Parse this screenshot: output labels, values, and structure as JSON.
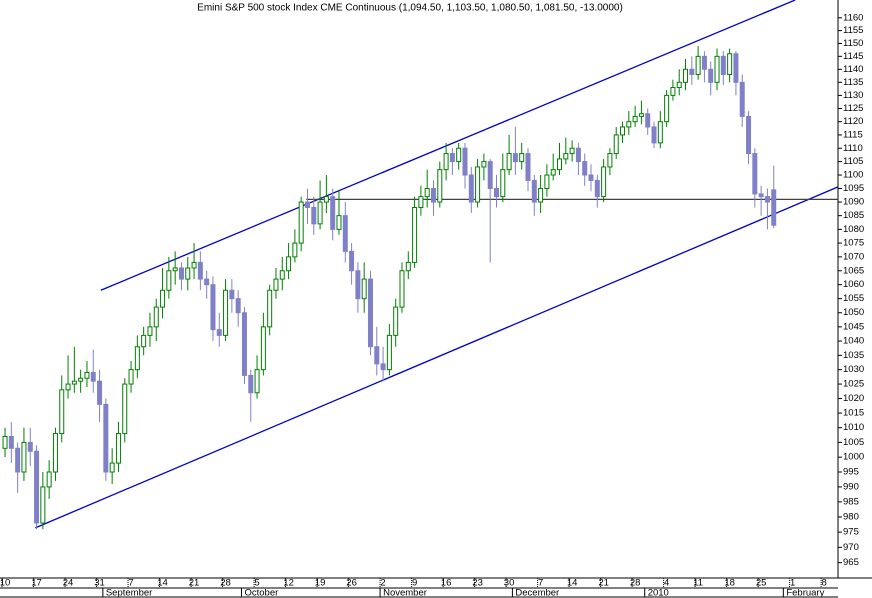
{
  "chart_data": {
    "type": "candlestick",
    "title": "Emini S&P 500 stock Index CME Continuous (1,094.50, 1,103.50, 1,080.50, 1,081.50, -13.0000)",
    "up_color": "#008000",
    "down_color": "#8080c8",
    "ylim": [
      960,
      1167
    ],
    "log_scale": true,
    "yticks": [
      965,
      970,
      975,
      980,
      985,
      990,
      995,
      1000,
      1005,
      1010,
      1015,
      1020,
      1025,
      1030,
      1035,
      1040,
      1045,
      1050,
      1055,
      1060,
      1065,
      1070,
      1075,
      1080,
      1085,
      1090,
      1095,
      1100,
      1105,
      1110,
      1115,
      1120,
      1125,
      1130,
      1135,
      1140,
      1145,
      1150,
      1155,
      1160
    ],
    "xlim": [
      -0.8,
      132.2
    ],
    "xticks": [
      {
        "value": 0,
        "label": "10"
      },
      {
        "value": 5,
        "label": "17"
      },
      {
        "value": 10,
        "label": "24"
      },
      {
        "value": 15,
        "label": "31"
      },
      {
        "value": 20,
        "label": "7"
      },
      {
        "value": 25,
        "label": "14"
      },
      {
        "value": 30,
        "label": "21"
      },
      {
        "value": 35,
        "label": "28"
      },
      {
        "value": 40,
        "label": "5"
      },
      {
        "value": 45,
        "label": "12"
      },
      {
        "value": 50,
        "label": "19"
      },
      {
        "value": 55,
        "label": "26"
      },
      {
        "value": 60,
        "label": "2"
      },
      {
        "value": 65,
        "label": "9"
      },
      {
        "value": 70,
        "label": "16"
      },
      {
        "value": 75,
        "label": "23"
      },
      {
        "value": 80,
        "label": "30"
      },
      {
        "value": 85,
        "label": "7"
      },
      {
        "value": 90,
        "label": "14"
      },
      {
        "value": 95,
        "label": "21"
      },
      {
        "value": 100,
        "label": "28"
      },
      {
        "value": 105,
        "label": "4"
      },
      {
        "value": 110,
        "label": "11"
      },
      {
        "value": 115,
        "label": "18"
      },
      {
        "value": 120,
        "label": "25"
      },
      {
        "value": 125,
        "label": "1"
      },
      {
        "value": 130,
        "label": "8"
      }
    ],
    "month_ticks": [
      {
        "value": 16,
        "label": "September"
      },
      {
        "value": 38,
        "label": "October"
      },
      {
        "value": 60,
        "label": "November"
      },
      {
        "value": 81,
        "label": "December"
      },
      {
        "value": 102,
        "label": "2010"
      },
      {
        "value": 124,
        "label": "February"
      }
    ],
    "lines": [
      {
        "x": [
          15.2,
          125.4
        ],
        "y": [
          1058,
          1167
        ],
        "color": "#0000cc"
      },
      {
        "x": [
          4.8,
          132.2
        ],
        "y": [
          976.4,
          1095.6
        ],
        "color": "#0000cc"
      },
      {
        "x": [
          47.8,
          132.2
        ],
        "y": [
          1091,
          1091
        ],
        "color": "#404040"
      }
    ],
    "candles": [
      [
        1003,
        1010,
        1000,
        1007
      ],
      [
        1007,
        1012,
        998,
        1003
      ],
      [
        1003,
        1005,
        988,
        995
      ],
      [
        995,
        1010,
        992,
        1005
      ],
      [
        1005,
        1010,
        997,
        1002
      ],
      [
        1002,
        1004,
        976,
        978
      ],
      [
        978,
        995,
        976,
        990
      ],
      [
        990,
        999,
        986,
        995
      ],
      [
        995,
        1010,
        992,
        1008
      ],
      [
        1008,
        1028,
        1005,
        1023
      ],
      [
        1023,
        1035,
        1020,
        1025
      ],
      [
        1025,
        1038,
        1022,
        1026
      ],
      [
        1026,
        1030,
        1022,
        1027
      ],
      [
        1027,
        1033,
        1024,
        1029
      ],
      [
        1029,
        1037,
        1022,
        1026
      ],
      [
        1026,
        1030,
        1012,
        1018
      ],
      [
        1018,
        1020,
        992,
        995
      ],
      [
        995,
        1003,
        991,
        998
      ],
      [
        998,
        1012,
        995,
        1008
      ],
      [
        1008,
        1027,
        1005,
        1025
      ],
      [
        1025,
        1033,
        1022,
        1030
      ],
      [
        1030,
        1042,
        1027,
        1038
      ],
      [
        1038,
        1045,
        1035,
        1042
      ],
      [
        1042,
        1050,
        1038,
        1045
      ],
      [
        1045,
        1055,
        1040,
        1052
      ],
      [
        1052,
        1066,
        1048,
        1058
      ],
      [
        1058,
        1070,
        1055,
        1065
      ],
      [
        1065,
        1072,
        1060,
        1066
      ],
      [
        1066,
        1068,
        1058,
        1062
      ],
      [
        1062,
        1070,
        1058,
        1066
      ],
      [
        1066,
        1075,
        1062,
        1068
      ],
      [
        1068,
        1072,
        1058,
        1062
      ],
      [
        1062,
        1065,
        1055,
        1060
      ],
      [
        1060,
        1063,
        1040,
        1044
      ],
      [
        1044,
        1050,
        1038,
        1042
      ],
      [
        1042,
        1062,
        1040,
        1058
      ],
      [
        1058,
        1062,
        1050,
        1055
      ],
      [
        1055,
        1058,
        1045,
        1050
      ],
      [
        1050,
        1052,
        1025,
        1028
      ],
      [
        1028,
        1030,
        1012,
        1022
      ],
      [
        1022,
        1035,
        1020,
        1030
      ],
      [
        1030,
        1050,
        1028,
        1045
      ],
      [
        1045,
        1060,
        1042,
        1058
      ],
      [
        1058,
        1066,
        1055,
        1062
      ],
      [
        1062,
        1070,
        1058,
        1065
      ],
      [
        1065,
        1075,
        1062,
        1070
      ],
      [
        1070,
        1080,
        1068,
        1075
      ],
      [
        1075,
        1092,
        1072,
        1090
      ],
      [
        1090,
        1095,
        1082,
        1088
      ],
      [
        1088,
        1092,
        1078,
        1082
      ],
      [
        1082,
        1098,
        1080,
        1090
      ],
      [
        1090,
        1100,
        1086,
        1092
      ],
      [
        1092,
        1095,
        1076,
        1080
      ],
      [
        1080,
        1094,
        1078,
        1085
      ],
      [
        1085,
        1090,
        1068,
        1072
      ],
      [
        1072,
        1075,
        1060,
        1065
      ],
      [
        1065,
        1068,
        1050,
        1055
      ],
      [
        1055,
        1068,
        1050,
        1062
      ],
      [
        1062,
        1065,
        1035,
        1038
      ],
      [
        1038,
        1045,
        1028,
        1032
      ],
      [
        1032,
        1038,
        1026,
        1030
      ],
      [
        1030,
        1046,
        1028,
        1042
      ],
      [
        1042,
        1055,
        1038,
        1052
      ],
      [
        1052,
        1068,
        1050,
        1065
      ],
      [
        1065,
        1072,
        1062,
        1068
      ],
      [
        1068,
        1092,
        1066,
        1088
      ],
      [
        1088,
        1096,
        1085,
        1092
      ],
      [
        1092,
        1102,
        1088,
        1095
      ],
      [
        1095,
        1098,
        1085,
        1090
      ],
      [
        1090,
        1105,
        1088,
        1102
      ],
      [
        1102,
        1112,
        1098,
        1108
      ],
      [
        1108,
        1110,
        1100,
        1105
      ],
      [
        1105,
        1112,
        1102,
        1110
      ],
      [
        1110,
        1112,
        1095,
        1100
      ],
      [
        1100,
        1103,
        1086,
        1090
      ],
      [
        1090,
        1106,
        1088,
        1103
      ],
      [
        1103,
        1108,
        1098,
        1105
      ],
      [
        1105,
        1106,
        1068,
        1095
      ],
      [
        1095,
        1100,
        1088,
        1092
      ],
      [
        1092,
        1108,
        1090,
        1102
      ],
      [
        1102,
        1115,
        1100,
        1108
      ],
      [
        1108,
        1118,
        1100,
        1105
      ],
      [
        1105,
        1112,
        1102,
        1108
      ],
      [
        1108,
        1110,
        1094,
        1098
      ],
      [
        1098,
        1100,
        1085,
        1090
      ],
      [
        1090,
        1100,
        1086,
        1095
      ],
      [
        1095,
        1104,
        1092,
        1100
      ],
      [
        1100,
        1108,
        1098,
        1102
      ],
      [
        1102,
        1112,
        1100,
        1106
      ],
      [
        1106,
        1114,
        1104,
        1108
      ],
      [
        1108,
        1113,
        1105,
        1110
      ],
      [
        1110,
        1112,
        1100,
        1105
      ],
      [
        1105,
        1108,
        1096,
        1100
      ],
      [
        1100,
        1104,
        1094,
        1098
      ],
      [
        1098,
        1100,
        1088,
        1092
      ],
      [
        1092,
        1106,
        1090,
        1103
      ],
      [
        1103,
        1110,
        1100,
        1108
      ],
      [
        1108,
        1118,
        1106,
        1115
      ],
      [
        1115,
        1120,
        1112,
        1118
      ],
      [
        1118,
        1124,
        1115,
        1120
      ],
      [
        1120,
        1126,
        1118,
        1122
      ],
      [
        1122,
        1128,
        1119,
        1123
      ],
      [
        1123,
        1125,
        1115,
        1118
      ],
      [
        1118,
        1120,
        1110,
        1112
      ],
      [
        1112,
        1124,
        1110,
        1120
      ],
      [
        1120,
        1132,
        1118,
        1130
      ],
      [
        1130,
        1136,
        1128,
        1133
      ],
      [
        1133,
        1140,
        1130,
        1135
      ],
      [
        1135,
        1144,
        1132,
        1140
      ],
      [
        1140,
        1145,
        1134,
        1138
      ],
      [
        1138,
        1149,
        1136,
        1145
      ],
      [
        1145,
        1147,
        1135,
        1140
      ],
      [
        1140,
        1143,
        1130,
        1135
      ],
      [
        1135,
        1148,
        1132,
        1145
      ],
      [
        1145,
        1147,
        1134,
        1138
      ],
      [
        1138,
        1148,
        1135,
        1146
      ],
      [
        1146,
        1147,
        1130,
        1135
      ],
      [
        1135,
        1138,
        1118,
        1122
      ],
      [
        1122,
        1124,
        1104,
        1108
      ],
      [
        1108,
        1110,
        1088,
        1093
      ],
      [
        1093,
        1096,
        1085,
        1092
      ],
      [
        1092,
        1095,
        1080,
        1090
      ],
      [
        1094.5,
        1103.5,
        1080.5,
        1081.5
      ]
    ]
  }
}
